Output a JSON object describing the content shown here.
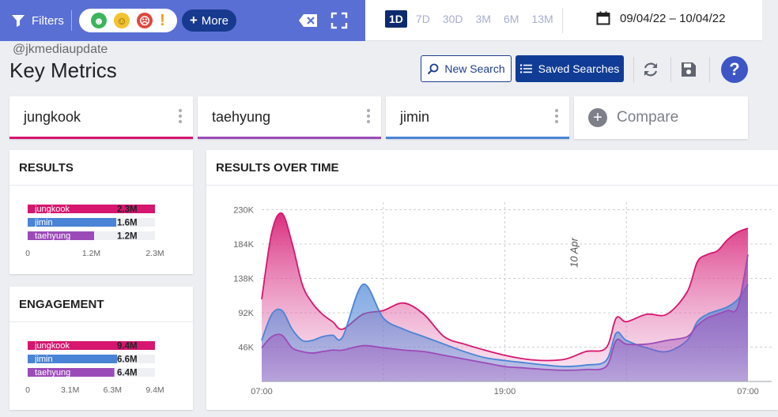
{
  "toolbar": {
    "filters_label": "Filters",
    "more_label": "More",
    "sentiment": {
      "positive": "☻",
      "neutral": "☺",
      "negative": "☹",
      "alert": "!"
    }
  },
  "date_ranges": [
    "1D",
    "7D",
    "30D",
    "3M",
    "6M",
    "13M"
  ],
  "active_range": "1D",
  "date_range_text": "09/04/22 – 10/04/22",
  "watermark": "@jkmediaupdate",
  "page_title": "Key Metrics",
  "actions": {
    "new_search": "New Search",
    "saved_searches": "Saved Searches"
  },
  "searches": [
    {
      "label": "jungkook",
      "color": "#d6166f"
    },
    {
      "label": "taehyung",
      "color": "#9b4bb8"
    },
    {
      "label": "jimin",
      "color": "#4a84d6"
    }
  ],
  "compare_label": "Compare",
  "results_panel": {
    "title": "RESULTS",
    "bars": [
      {
        "label": "jungkook",
        "value": "2.3M",
        "amount": 2.3,
        "color": "#d6166f"
      },
      {
        "label": "jimin",
        "value": "1.6M",
        "amount": 1.6,
        "color": "#4a84d6"
      },
      {
        "label": "taehyung",
        "value": "1.2M",
        "amount": 1.2,
        "color": "#9b4bb8"
      }
    ],
    "max": 2.3,
    "ticks": [
      "0",
      "1.2M",
      "2.3M"
    ]
  },
  "engagement_panel": {
    "title": "ENGAGEMENT",
    "bars": [
      {
        "label": "jungkook",
        "value": "9.4M",
        "amount": 9.4,
        "color": "#d6166f"
      },
      {
        "label": "jimin",
        "value": "6.6M",
        "amount": 6.6,
        "color": "#4a84d6"
      },
      {
        "label": "taehyung",
        "value": "6.4M",
        "amount": 6.4,
        "color": "#9b4bb8"
      }
    ],
    "max": 9.4,
    "ticks": [
      "0",
      "3.1M",
      "6.3M",
      "9.4M"
    ]
  },
  "time_panel": {
    "title": "RESULTS OVER TIME"
  },
  "chart_data": {
    "type": "area",
    "title": "RESULTS OVER TIME",
    "x_ticks": [
      "07:00",
      "19:00",
      "07:00"
    ],
    "y_ticks": [
      "46K",
      "92K",
      "138K",
      "184K",
      "230K"
    ],
    "ylim": [
      0,
      240000
    ],
    "annotation": "10 Apr",
    "annotation_x": 17,
    "x_range": [
      0,
      24
    ],
    "series": [
      {
        "name": "jungkook",
        "color": "#d6166f",
        "x": [
          0,
          0.5,
          1,
          1.5,
          2,
          2.5,
          3,
          3.5,
          4,
          5,
          6,
          7,
          8,
          9,
          10,
          11,
          12,
          13,
          14,
          15,
          16,
          17,
          17.5,
          18,
          19,
          20,
          21,
          21.5,
          22,
          22.5,
          23,
          23.5,
          24
        ],
        "y": [
          110000,
          200000,
          225000,
          185000,
          130000,
          105000,
          90000,
          80000,
          70000,
          90000,
          95000,
          105000,
          90000,
          60000,
          50000,
          42000,
          35000,
          30000,
          28000,
          30000,
          40000,
          45000,
          85000,
          80000,
          90000,
          90000,
          120000,
          160000,
          170000,
          175000,
          190000,
          200000,
          205000
        ]
      },
      {
        "name": "jimin",
        "color": "#4a84d6",
        "x": [
          0,
          0.5,
          1,
          1.5,
          2,
          2.5,
          3,
          3.5,
          4,
          5,
          6,
          7,
          8,
          9,
          10,
          11,
          12,
          13,
          14,
          15,
          16,
          17,
          17.5,
          18,
          19,
          20,
          21,
          21.5,
          22,
          22.5,
          23,
          23.5,
          24
        ],
        "y": [
          55000,
          90000,
          95000,
          70000,
          55000,
          55000,
          60000,
          62000,
          60000,
          130000,
          85000,
          70000,
          60000,
          50000,
          40000,
          32000,
          28000,
          25000,
          22000,
          20000,
          22000,
          28000,
          65000,
          55000,
          45000,
          40000,
          55000,
          80000,
          90000,
          95000,
          100000,
          110000,
          130000
        ]
      },
      {
        "name": "taehyung",
        "color": "#9b4bb8",
        "x": [
          0,
          0.5,
          1,
          1.5,
          2,
          2.5,
          3,
          3.5,
          4,
          5,
          6,
          7,
          8,
          9,
          10,
          11,
          12,
          13,
          14,
          15,
          16,
          17,
          17.5,
          18,
          19,
          20,
          21,
          21.5,
          22,
          22.5,
          23,
          23.5,
          24
        ],
        "y": [
          45000,
          60000,
          62000,
          45000,
          40000,
          38000,
          40000,
          42000,
          42000,
          48000,
          45000,
          42000,
          40000,
          35000,
          30000,
          25000,
          20000,
          18000,
          16000,
          15000,
          16000,
          20000,
          55000,
          50000,
          50000,
          55000,
          60000,
          75000,
          85000,
          90000,
          95000,
          100000,
          170000
        ]
      }
    ]
  }
}
